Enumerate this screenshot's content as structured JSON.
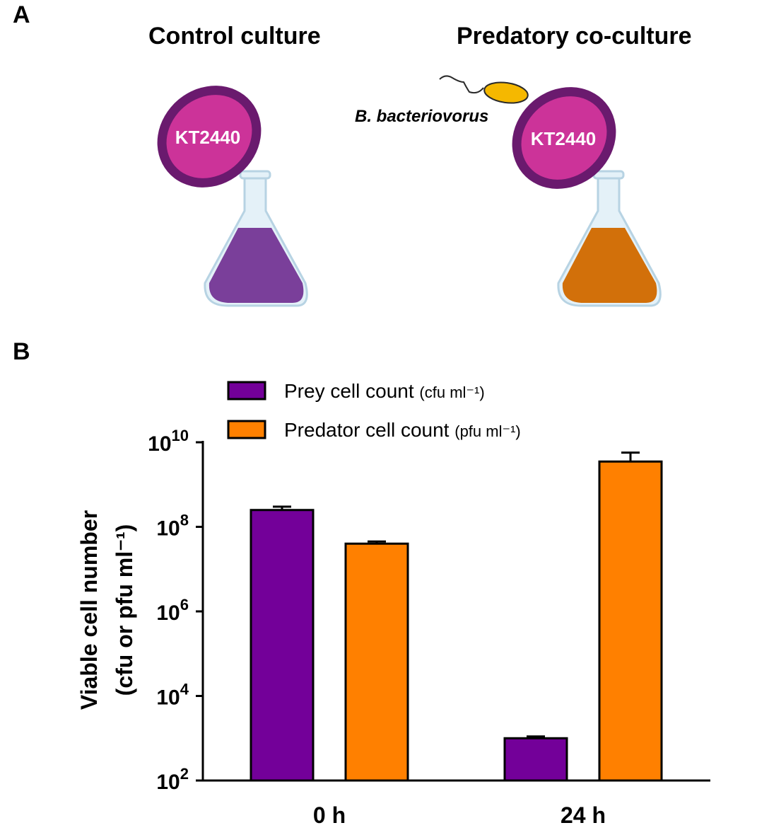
{
  "panels": {
    "a_label": "A",
    "b_label": "B"
  },
  "illustration": {
    "control_title": "Control culture",
    "predatory_title": "Predatory co-culture",
    "strain_label": "KT2440",
    "predator_label": "B. bacteriovorus",
    "colors": {
      "cell_fill": "#cc3399",
      "cell_outline": "#6a1a6e",
      "control_liquid": "#7a3f9a",
      "predatory_liquid": "#d2700a",
      "predator_body": "#f5b800",
      "flask_glass": "#e4f1f8",
      "flask_outline": "#b7d3e3"
    }
  },
  "chart_data": {
    "type": "bar",
    "categories": [
      "0 h",
      "24 h"
    ],
    "series": [
      {
        "name": "Prey cell count",
        "unit": "(cfu ml⁻¹)",
        "color": "#730099",
        "values": [
          250000000,
          1000
        ],
        "errors": [
          50000000,
          100
        ]
      },
      {
        "name": "Predator cell count",
        "unit": "(pfu ml⁻¹)",
        "color": "#ff8000",
        "values": [
          40000000,
          3500000000
        ],
        "errors": [
          5000000,
          2200000000
        ]
      }
    ],
    "ylabel_line1": "Viable  cell number",
    "ylabel_line2": "(cfu or pfu ml⁻¹)",
    "yscale": "log",
    "ylim": [
      100,
      10000000000
    ],
    "yticks": [
      {
        "value": 100,
        "base": "10",
        "exp": "2"
      },
      {
        "value": 10000,
        "base": "10",
        "exp": "4"
      },
      {
        "value": 1000000,
        "base": "10",
        "exp": "6"
      },
      {
        "value": 100000000,
        "base": "10",
        "exp": "8"
      },
      {
        "value": 10000000000,
        "base": "10",
        "exp": "10"
      }
    ],
    "legend_position": "top",
    "grid": false
  }
}
